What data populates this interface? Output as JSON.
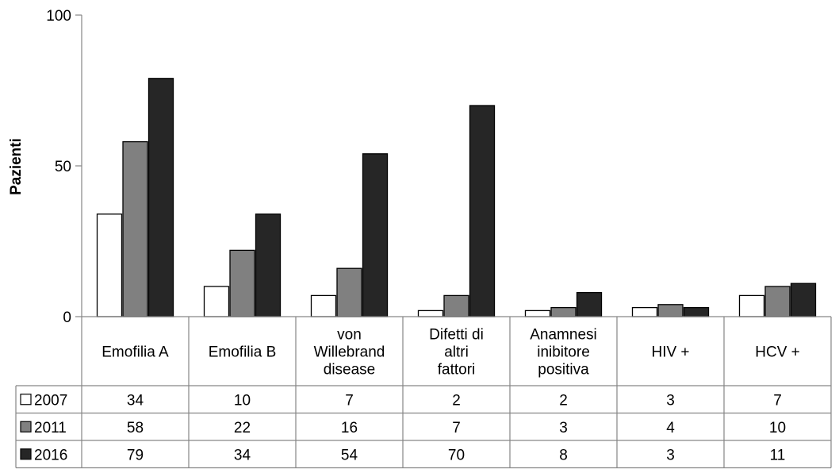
{
  "chart_data": {
    "type": "bar",
    "title": "",
    "xlabel": "",
    "ylabel": "Pazienti",
    "ylim": [
      0,
      100
    ],
    "yticks": [
      "0",
      "50",
      "100"
    ],
    "grid": false,
    "legend": "data-table",
    "categories": [
      "Emofilia A",
      "Emofilia B",
      "von Willebrand disease",
      "Difetti di altri fattori",
      "Anamnesi inibitore positiva",
      "HIV +",
      "HCV +"
    ],
    "series": [
      {
        "name": "2007",
        "color": "#ffffff",
        "values": [
          34,
          10,
          7,
          2,
          2,
          3,
          7
        ]
      },
      {
        "name": "2011",
        "color": "#808080",
        "values": [
          58,
          22,
          16,
          7,
          3,
          4,
          10
        ]
      },
      {
        "name": "2016",
        "color": "#262626",
        "values": [
          79,
          34,
          54,
          70,
          8,
          3,
          11
        ]
      }
    ]
  }
}
